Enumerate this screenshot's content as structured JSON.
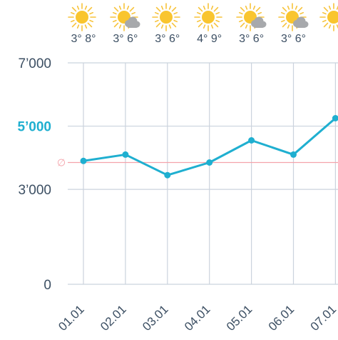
{
  "chart_data": {
    "type": "line",
    "categories": [
      "01.01",
      "02.01",
      "03.01",
      "04.01",
      "05.01",
      "06.01",
      "07.01"
    ],
    "series": [
      {
        "values": [
          3900,
          4100,
          3450,
          3850,
          4550,
          4100,
          5250
        ]
      }
    ],
    "reference_line": {
      "label": "∅",
      "value": 3850,
      "color": "#f4a3ab"
    },
    "y_ticks": [
      {
        "value": 0,
        "label": "0"
      },
      {
        "value": 3000,
        "label": "3’000"
      },
      {
        "value": 5000,
        "label": "5’000",
        "highlight": true
      },
      {
        "value": 7000,
        "label": "7’000"
      }
    ],
    "ylim": [
      0,
      7000
    ],
    "grid": true,
    "colors": {
      "line": "#1fafd0",
      "grid": "#cbd3dd",
      "axis_label": "#3c4f63",
      "highlight_label": "#1fafd0"
    }
  },
  "weather": [
    {
      "icon": "sun-icon",
      "temps": "3° 8°"
    },
    {
      "icon": "sun-cloud-icon",
      "temps": "3° 6°"
    },
    {
      "icon": "sun-icon",
      "temps": "3° 6°"
    },
    {
      "icon": "sun-icon",
      "temps": "4° 9°"
    },
    {
      "icon": "sun-cloud-icon",
      "temps": "3° 6°"
    },
    {
      "icon": "sun-cloud-icon",
      "temps": "3° 6°"
    },
    {
      "icon": "sun-icon",
      "temps": ""
    }
  ]
}
